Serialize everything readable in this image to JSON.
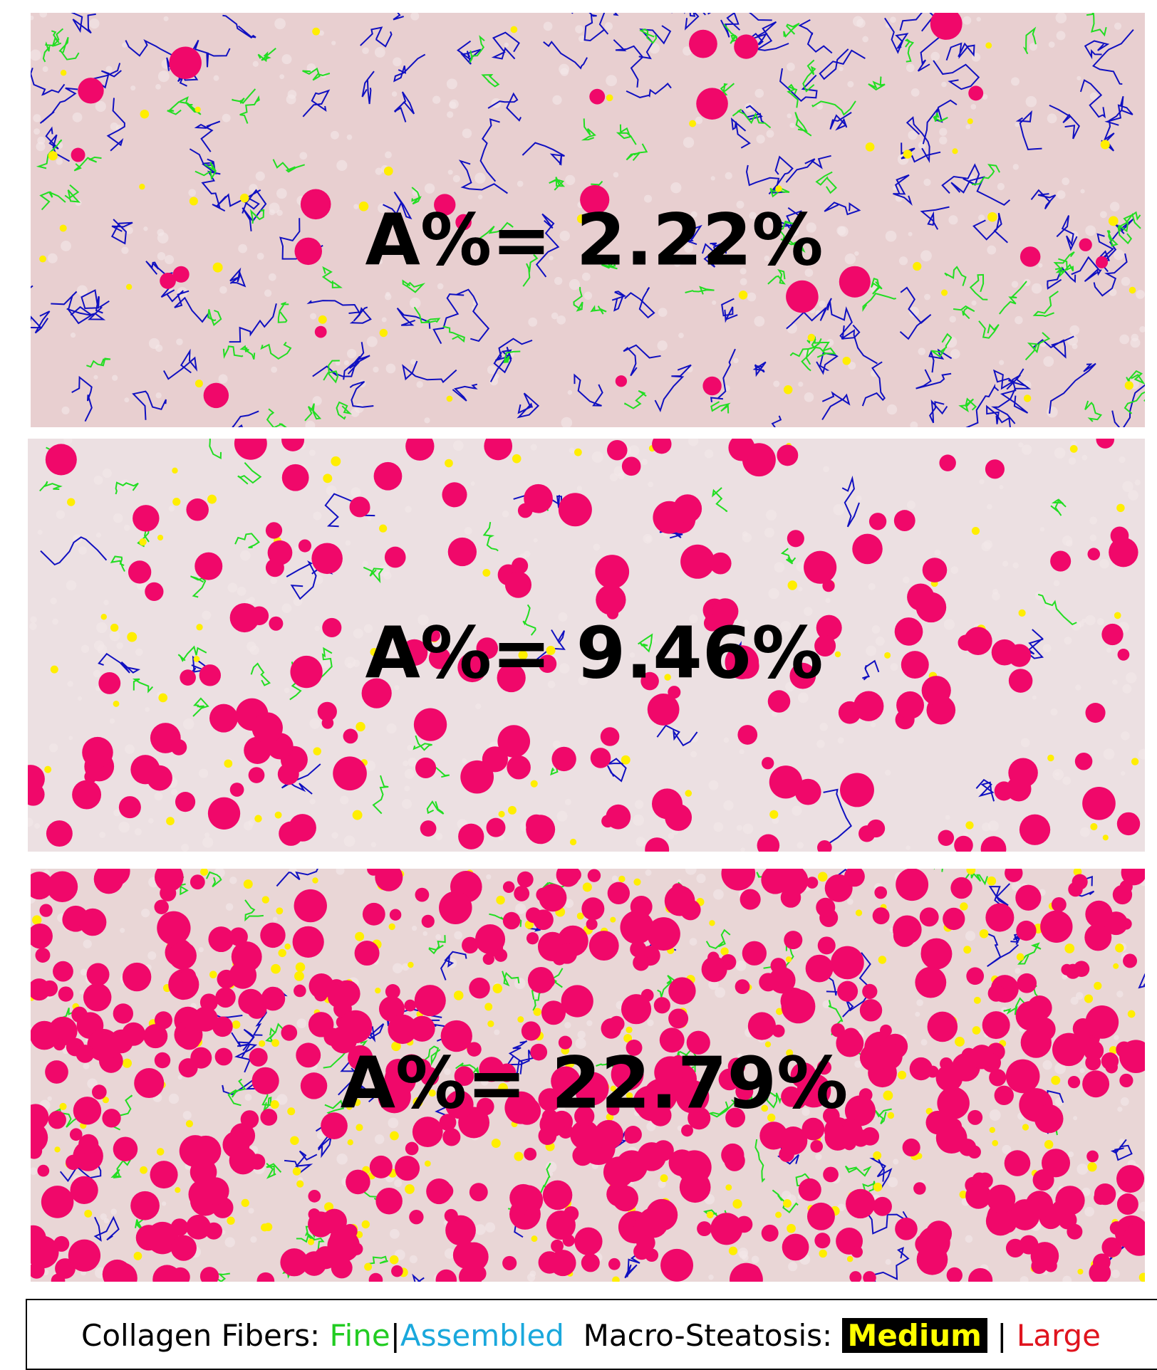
{
  "panels": [
    {
      "label": "A%= 2.22%"
    },
    {
      "label": "A%= 9.46%"
    },
    {
      "label": "A%= 22.79%"
    }
  ],
  "legend": {
    "collagen_label": "Collagen Fibers:",
    "fine": "Fine",
    "separator_1": "|",
    "assembled": "Assembled",
    "steatosis_label": "Macro-Steatosis:",
    "medium": "Medium",
    "separator_2": "|",
    "large": "Large"
  }
}
